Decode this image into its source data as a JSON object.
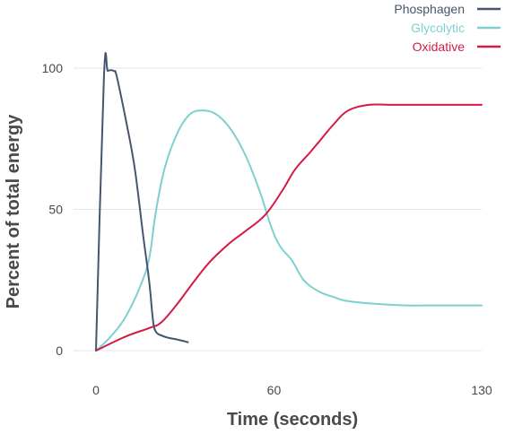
{
  "chart_data": {
    "type": "line",
    "xlabel": "Time (seconds)",
    "ylabel": "Percent of total energy",
    "xlim": [
      0,
      130
    ],
    "ylim": [
      0,
      100
    ],
    "x_ticks": [
      0,
      60,
      130
    ],
    "y_ticks": [
      0,
      50,
      100
    ],
    "grid": "horizontal",
    "legend_position": "top-right",
    "series": [
      {
        "name": "Phosphagen",
        "color": "#46566f",
        "points": [
          [
            0,
            0
          ],
          [
            2.7,
            97
          ],
          [
            4,
            99
          ],
          [
            6,
            99
          ],
          [
            7,
            97
          ],
          [
            10,
            82
          ],
          [
            13,
            65
          ],
          [
            16,
            40
          ],
          [
            18,
            24
          ],
          [
            19,
            13
          ],
          [
            20,
            7
          ],
          [
            23,
            5
          ],
          [
            27,
            4
          ],
          [
            31,
            3
          ]
        ]
      },
      {
        "name": "Glycolytic",
        "color": "#7ed0d0",
        "points": [
          [
            0,
            0
          ],
          [
            5,
            5
          ],
          [
            10,
            12
          ],
          [
            15,
            23
          ],
          [
            18,
            33
          ],
          [
            20,
            48
          ],
          [
            23,
            64
          ],
          [
            27,
            76
          ],
          [
            31,
            83
          ],
          [
            35,
            85
          ],
          [
            40,
            84
          ],
          [
            45,
            79
          ],
          [
            50,
            70
          ],
          [
            55,
            57
          ],
          [
            59,
            44
          ],
          [
            62,
            37
          ],
          [
            66,
            32
          ],
          [
            70,
            25
          ],
          [
            75,
            21
          ],
          [
            80,
            19
          ],
          [
            85,
            17.5
          ],
          [
            95,
            16.5
          ],
          [
            105,
            16
          ],
          [
            115,
            16
          ],
          [
            130,
            16
          ]
        ]
      },
      {
        "name": "Oxidative",
        "color": "#d51a45",
        "points": [
          [
            0,
            0
          ],
          [
            10,
            5
          ],
          [
            18,
            8
          ],
          [
            22,
            10
          ],
          [
            27,
            16
          ],
          [
            32,
            23
          ],
          [
            38,
            31
          ],
          [
            45,
            38
          ],
          [
            50,
            42
          ],
          [
            57,
            48
          ],
          [
            63,
            57
          ],
          [
            67,
            64
          ],
          [
            72,
            70
          ],
          [
            76,
            75
          ],
          [
            80,
            80
          ],
          [
            85,
            85
          ],
          [
            92,
            87
          ],
          [
            100,
            87
          ],
          [
            110,
            87
          ],
          [
            120,
            87
          ],
          [
            130,
            87
          ]
        ]
      }
    ]
  }
}
